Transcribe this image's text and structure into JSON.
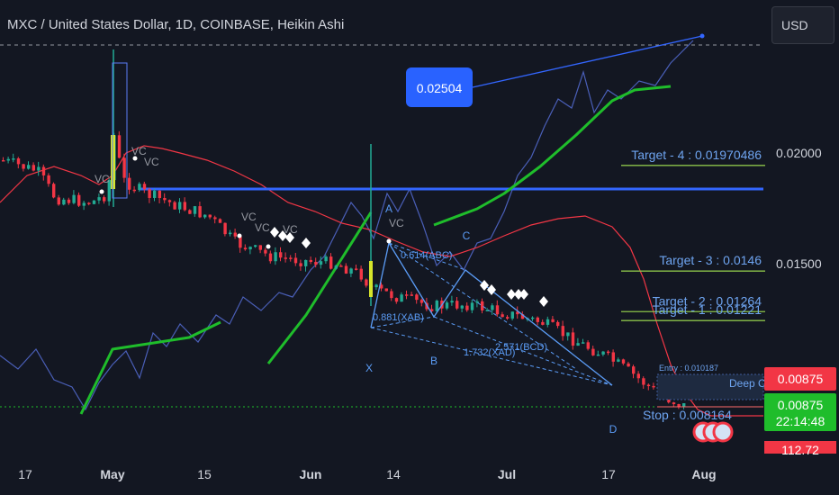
{
  "title": "MXC / United States Dollar, 1D, COINBASE, Heikin Ashi",
  "currency_button": "USD",
  "colors": {
    "background": "#131722",
    "bull": "#22ab94",
    "bear": "#f23645",
    "zigzag": "#1fbd2b",
    "envelope": "#f23645",
    "harmonic": "#5b9cf6",
    "level": "#3366ff",
    "line_overlay": "#4a5fb8",
    "target_line": "#8bc34a"
  },
  "chart_data": {
    "type": "candlestick",
    "style": "Heikin Ashi",
    "x_ticks": [
      "17",
      "May",
      "15",
      "Jun",
      "14",
      "Jul",
      "17",
      "Aug"
    ],
    "y_ticks": [
      "0.02000",
      "0.01500"
    ],
    "last_price": "0.00875",
    "countdown": "22:14:48",
    "price_label_partial": "112.72",
    "callout": "0.02504",
    "targets": [
      {
        "label": "Target - 4 : 0.01970486",
        "price": 0.01970486
      },
      {
        "label": "Target - 3 : 0.0146",
        "price": 0.0146
      },
      {
        "label": "Target - 2 : 0.01264",
        "price": 0.01264
      },
      {
        "label": "Target - 1 : 0.01221",
        "price": 0.01221
      }
    ],
    "entry_label": "Entry : 0.010187",
    "deep_label": "Deep Cr",
    "stop_label": "Stop : 0.008164",
    "harmonic_points": [
      "X",
      "A",
      "B",
      "C",
      "D"
    ],
    "ratios": [
      "0.614(ABC)",
      "0.881(XAB)",
      "1.732(XAD)",
      "2.571(BCD)"
    ],
    "vc_label": "VC"
  }
}
